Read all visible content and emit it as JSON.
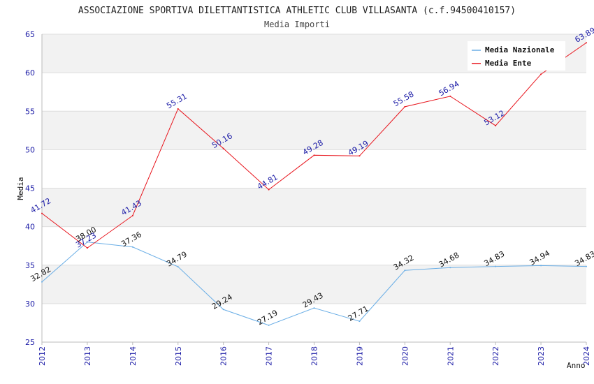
{
  "chart_data": {
    "type": "line",
    "title": "ASSOCIAZIONE SPORTIVA DILETTANTISTICA ATHLETIC CLUB VILLASANTA (c.f.94500410157)",
    "subtitle": "Media Importi",
    "xlabel": "Anno",
    "ylabel": "Media",
    "ylim": [
      25,
      65
    ],
    "yticks": [
      25,
      30,
      35,
      40,
      45,
      50,
      55,
      60,
      65
    ],
    "categories": [
      "2012",
      "2013",
      "2014",
      "2015",
      "2016",
      "2017",
      "2018",
      "2019",
      "2020",
      "2021",
      "2022",
      "2023",
      "2024"
    ],
    "legend_position": "top-right",
    "series": [
      {
        "name": "Media Nazionale",
        "color": "#6aaee6",
        "label_color": "#111111",
        "values": [
          32.82,
          38.0,
          37.36,
          34.79,
          29.24,
          27.19,
          29.43,
          27.71,
          34.32,
          34.68,
          34.83,
          34.94,
          34.83
        ],
        "labels": [
          "32.82",
          "38.00",
          "37.36",
          "34.79",
          "29.24",
          "27.19",
          "29.43",
          "27.71",
          "34.32",
          "34.68",
          "34.83",
          "34.94",
          "34.83"
        ]
      },
      {
        "name": "Media Ente",
        "color": "#e8141c",
        "label_color": "#1a1aa6",
        "values": [
          41.72,
          37.23,
          41.43,
          55.31,
          50.16,
          44.81,
          49.28,
          49.19,
          55.58,
          56.94,
          53.12,
          59.8,
          63.89
        ],
        "labels": [
          "41.72",
          "37.23",
          "41.43",
          "55.31",
          "50.16",
          "44.81",
          "49.28",
          "49.19",
          "55.58",
          "56.94",
          "53.12",
          "",
          "63.89"
        ]
      }
    ]
  }
}
